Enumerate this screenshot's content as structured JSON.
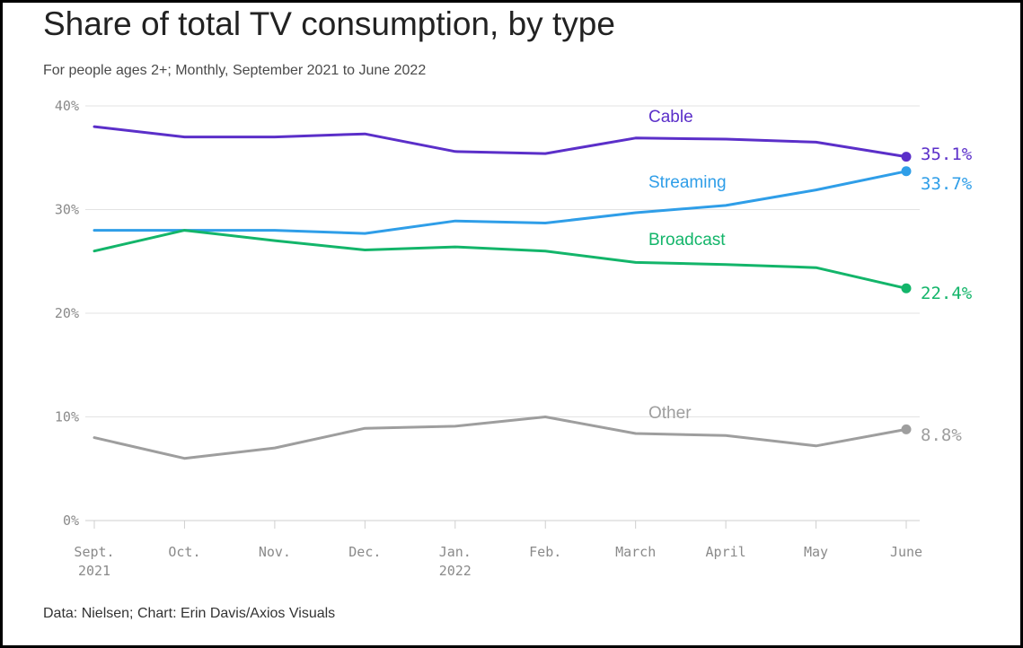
{
  "header": {
    "title": "Share of total TV consumption, by type",
    "subtitle": "For people ages 2+; Monthly, September 2021 to June 2022"
  },
  "footer": {
    "source": "Data: Nielsen; Chart: Erin Davis/Axios Visuals"
  },
  "chart_data": {
    "type": "line",
    "title": "Share of total TV consumption, by type",
    "subtitle": "For people ages 2+; Monthly, September 2021 to June 2022",
    "categories": [
      "Sept. 2021",
      "Oct.",
      "Nov.",
      "Dec.",
      "Jan. 2022",
      "Feb.",
      "March",
      "April",
      "May",
      "June"
    ],
    "x_tick_labels": [
      [
        "Sept.",
        "2021"
      ],
      [
        "Oct."
      ],
      [
        "Nov."
      ],
      [
        "Dec."
      ],
      [
        "Jan.",
        "2022"
      ],
      [
        "Feb."
      ],
      [
        "March"
      ],
      [
        "April"
      ],
      [
        "May"
      ],
      [
        "June"
      ]
    ],
    "y_ticks": [
      0,
      10,
      20,
      30,
      40
    ],
    "y_tick_labels": [
      "0%",
      "10%",
      "20%",
      "30%",
      "40%"
    ],
    "ylim": [
      0,
      40
    ],
    "grid": true,
    "series": [
      {
        "name": "Cable",
        "color": "#5b2fc9",
        "values": [
          38.0,
          37.0,
          37.0,
          37.3,
          35.6,
          35.4,
          36.9,
          36.8,
          36.5,
          35.1
        ],
        "end_label": "35.1%"
      },
      {
        "name": "Streaming",
        "color": "#2f9ee8",
        "values": [
          28.0,
          28.0,
          28.0,
          27.7,
          28.9,
          28.7,
          29.7,
          30.4,
          31.9,
          33.7
        ],
        "end_label": "33.7%"
      },
      {
        "name": "Broadcast",
        "color": "#13b56a",
        "values": [
          26.0,
          28.0,
          27.0,
          26.1,
          26.4,
          26.0,
          24.9,
          24.7,
          24.4,
          22.4
        ],
        "end_label": "22.4%"
      },
      {
        "name": "Other",
        "color": "#9e9e9e",
        "values": [
          8.0,
          6.0,
          7.0,
          8.9,
          9.1,
          10.0,
          8.4,
          8.2,
          7.2,
          8.8
        ],
        "end_label": "8.8%"
      }
    ]
  }
}
